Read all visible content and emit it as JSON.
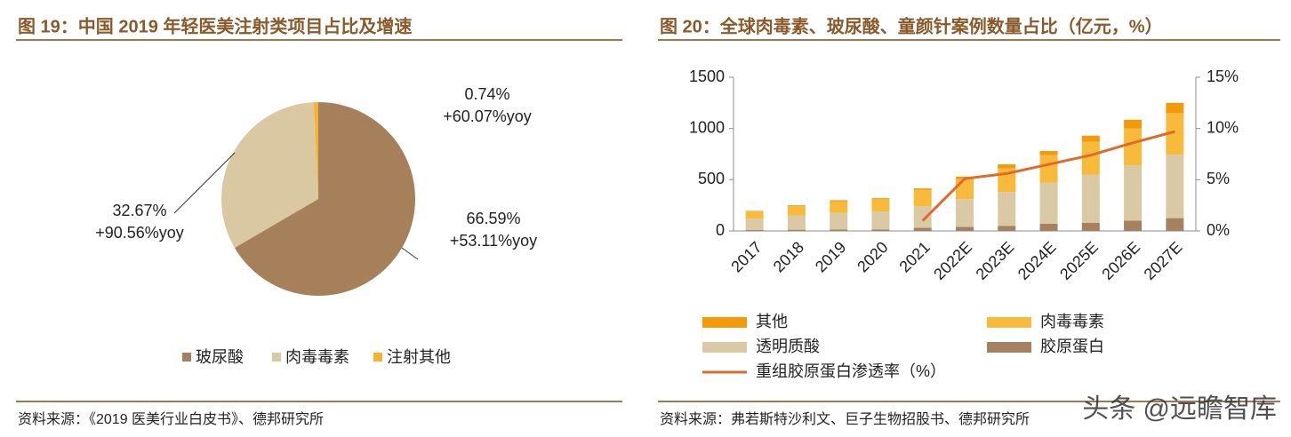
{
  "chart_data": [
    {
      "type": "pie",
      "title": "图 19：中国 2019 年轻医美注射类项目占比及增速",
      "categories": [
        "玻尿酸",
        "肉毒毒素",
        "注射其他"
      ],
      "values": [
        66.59,
        32.67,
        0.74
      ],
      "value_labels": [
        "66.59%",
        "32.67%",
        "0.74%"
      ],
      "growth_labels": [
        "+53.11%yoy",
        "+90.56%yoy",
        "+60.07%yoy"
      ],
      "colors": [
        "#a5805b",
        "#d9c8a2",
        "#f5b332"
      ]
    },
    {
      "type": "bar",
      "title": "图 20：全球肉毒素、玻尿酸、童颜针案例数量占比（亿元，%）",
      "categories": [
        "2017",
        "2018",
        "2019",
        "2020",
        "2021",
        "2022E",
        "2023E",
        "2024E",
        "2025E",
        "2026E",
        "2027E"
      ],
      "ylim": [
        0,
        1500
      ],
      "yticks": [
        0,
        500,
        1000,
        1500
      ],
      "y2lim": [
        0,
        15
      ],
      "y2ticks": [
        {
          "value": 0,
          "label": "0%"
        },
        {
          "value": 5,
          "label": "5%"
        },
        {
          "value": 10,
          "label": "10%"
        },
        {
          "value": 15,
          "label": "15%"
        }
      ],
      "series": [
        {
          "name": "其他",
          "color": "#f39a0a",
          "values": [
            5,
            8,
            10,
            10,
            15,
            25,
            40,
            40,
            60,
            85,
            100
          ]
        },
        {
          "name": "肉毒毒素",
          "color": "#f8ba3a",
          "values": [
            70,
            90,
            115,
            120,
            160,
            195,
            230,
            270,
            320,
            360,
            405
          ]
        },
        {
          "name": "透明质酸",
          "color": "#d9c9a4",
          "values": [
            110,
            140,
            160,
            175,
            210,
            270,
            330,
            400,
            470,
            540,
            620
          ]
        },
        {
          "name": "胶原蛋白",
          "color": "#a58160",
          "values": [
            10,
            12,
            15,
            15,
            30,
            40,
            50,
            70,
            80,
            100,
            125
          ]
        },
        {
          "name": "重组胶原蛋白渗透率（%）",
          "color": "#e06a2c",
          "type": "line",
          "axis": "y2",
          "values": [
            null,
            null,
            null,
            null,
            1.0,
            5.1,
            5.6,
            6.5,
            7.4,
            8.6,
            9.7
          ]
        }
      ]
    }
  ],
  "sources": [
    "资料来源：《2019 医美行业白皮书》、德邦研究所",
    "资料来源：弗若斯特沙利文、巨子生物招股书、德邦研究所"
  ],
  "watermark": "头条 @远瞻智库"
}
